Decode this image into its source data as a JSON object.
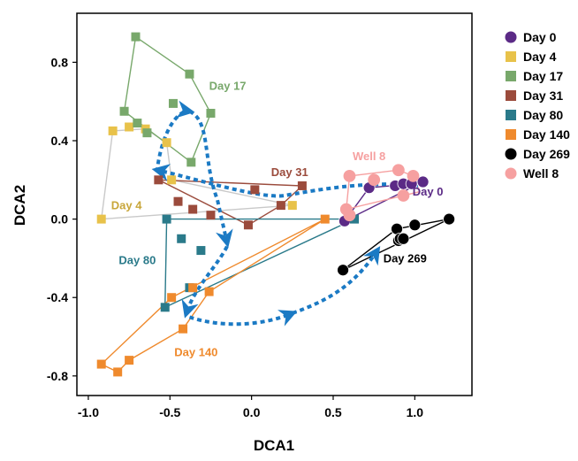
{
  "chart_data": {
    "type": "scatter",
    "title": "",
    "xlabel": "DCA1",
    "ylabel": "DCA2",
    "xlim": [
      -1.07,
      1.35
    ],
    "ylim": [
      -0.9,
      1.05
    ],
    "xticks": [
      -1.0,
      -0.5,
      0.0,
      0.5,
      1.0
    ],
    "yticks": [
      -0.8,
      -0.4,
      0.0,
      0.4,
      0.8
    ],
    "xtick_labels": [
      "-1.0",
      "-0.5",
      "0.0",
      "0.5",
      "1.0"
    ],
    "ytick_labels": [
      "-0.8",
      "-0.4",
      "0.0",
      "0.4",
      "0.8"
    ],
    "grid": false,
    "legend_position": "outside-right",
    "series": [
      {
        "name": "Day 0",
        "marker": "circle",
        "color": "#5b2a86",
        "points": [
          [
            0.57,
            -0.01
          ],
          [
            0.72,
            0.16
          ],
          [
            0.88,
            0.17
          ],
          [
            0.93,
            0.18
          ],
          [
            0.98,
            0.18
          ],
          [
            1.05,
            0.19
          ]
        ],
        "hull": [
          [
            0.57,
            -0.01
          ],
          [
            1.05,
            0.19
          ],
          [
            0.99,
            0.18
          ],
          [
            0.72,
            0.16
          ],
          [
            0.57,
            -0.01
          ]
        ],
        "label": "Day 0"
      },
      {
        "name": "Day 4",
        "marker": "square",
        "color": "#e8c24a",
        "points": [
          [
            -0.92,
            0.0
          ],
          [
            -0.85,
            0.45
          ],
          [
            -0.75,
            0.47
          ],
          [
            -0.65,
            0.46
          ],
          [
            -0.52,
            0.39
          ],
          [
            -0.49,
            0.2
          ],
          [
            0.25,
            0.07
          ]
        ],
        "hull": [
          [
            -0.92,
            0.0
          ],
          [
            -0.85,
            0.45
          ],
          [
            -0.65,
            0.46
          ],
          [
            -0.52,
            0.39
          ],
          [
            -0.49,
            0.2
          ],
          [
            0.25,
            0.07
          ],
          [
            -0.92,
            0.0
          ]
        ],
        "label": "Day 4"
      },
      {
        "name": "Day 17",
        "marker": "square",
        "color": "#78a86b",
        "points": [
          [
            -0.71,
            0.93
          ],
          [
            -0.38,
            0.74
          ],
          [
            -0.25,
            0.54
          ],
          [
            -0.78,
            0.55
          ],
          [
            -0.7,
            0.49
          ],
          [
            -0.64,
            0.44
          ],
          [
            -0.48,
            0.59
          ],
          [
            -0.37,
            0.29
          ]
        ],
        "hull": [
          [
            -0.71,
            0.93
          ],
          [
            -0.38,
            0.74
          ],
          [
            -0.25,
            0.54
          ],
          [
            -0.37,
            0.29
          ],
          [
            -0.78,
            0.55
          ],
          [
            -0.71,
            0.93
          ]
        ],
        "label": "Day 17"
      },
      {
        "name": "Day 31",
        "marker": "square",
        "color": "#9b4b3c",
        "points": [
          [
            -0.57,
            0.2
          ],
          [
            -0.45,
            0.09
          ],
          [
            -0.36,
            0.05
          ],
          [
            -0.25,
            0.02
          ],
          [
            0.02,
            0.15
          ],
          [
            0.18,
            0.07
          ],
          [
            0.31,
            0.17
          ],
          [
            -0.02,
            -0.03
          ]
        ],
        "hull": [
          [
            -0.57,
            0.2
          ],
          [
            0.31,
            0.17
          ],
          [
            0.18,
            0.07
          ],
          [
            -0.02,
            -0.03
          ],
          [
            -0.57,
            0.2
          ]
        ],
        "label": "Day 31"
      },
      {
        "name": "Day 80",
        "marker": "square",
        "color": "#2a7a8a",
        "points": [
          [
            -0.52,
            0.0
          ],
          [
            -0.43,
            -0.1
          ],
          [
            -0.38,
            -0.35
          ],
          [
            -0.53,
            -0.45
          ],
          [
            -0.31,
            -0.16
          ],
          [
            0.63,
            0.0
          ]
        ],
        "hull": [
          [
            -0.52,
            0.0
          ],
          [
            0.63,
            0.0
          ],
          [
            -0.53,
            -0.45
          ],
          [
            -0.52,
            0.0
          ]
        ],
        "label": "Day 80"
      },
      {
        "name": "Day 140",
        "marker": "square",
        "color": "#ef8a2d",
        "points": [
          [
            -0.92,
            -0.74
          ],
          [
            -0.82,
            -0.78
          ],
          [
            -0.75,
            -0.72
          ],
          [
            -0.49,
            -0.4
          ],
          [
            -0.42,
            -0.56
          ],
          [
            -0.36,
            -0.35
          ],
          [
            -0.26,
            -0.37
          ],
          [
            0.45,
            0.0
          ]
        ],
        "hull": [
          [
            -0.92,
            -0.74
          ],
          [
            -0.82,
            -0.78
          ],
          [
            -0.75,
            -0.72
          ],
          [
            -0.42,
            -0.56
          ],
          [
            -0.26,
            -0.37
          ],
          [
            0.45,
            0.0
          ],
          [
            -0.49,
            -0.4
          ],
          [
            -0.92,
            -0.74
          ]
        ],
        "label": "Day 140"
      },
      {
        "name": "Day 269",
        "marker": "circle",
        "color": "#000000",
        "points": [
          [
            0.56,
            -0.26
          ],
          [
            0.89,
            -0.05
          ],
          [
            0.9,
            -0.11
          ],
          [
            0.91,
            -0.1
          ],
          [
            0.93,
            -0.1
          ],
          [
            1.0,
            -0.03
          ],
          [
            1.21,
            0.0
          ]
        ],
        "hull": [
          [
            0.56,
            -0.26
          ],
          [
            1.21,
            0.0
          ],
          [
            0.89,
            -0.05
          ],
          [
            0.56,
            -0.26
          ]
        ],
        "label": "Day 269"
      },
      {
        "name": "Well 8",
        "marker": "circle",
        "color": "#f6a0a0",
        "points": [
          [
            0.6,
            0.22
          ],
          [
            0.75,
            0.2
          ],
          [
            0.9,
            0.25
          ],
          [
            0.99,
            0.22
          ],
          [
            0.93,
            0.12
          ],
          [
            0.58,
            0.05
          ],
          [
            0.6,
            0.02
          ]
        ],
        "hull": [
          [
            0.6,
            0.22
          ],
          [
            0.9,
            0.25
          ],
          [
            0.99,
            0.22
          ],
          [
            1.03,
            0.14
          ],
          [
            0.58,
            0.05
          ],
          [
            0.6,
            0.22
          ]
        ],
        "label": "Well 8"
      }
    ]
  },
  "legend": [
    {
      "label": "Day 0",
      "color": "#5b2a86",
      "marker": "circle"
    },
    {
      "label": "Day 4",
      "color": "#e8c24a",
      "marker": "square"
    },
    {
      "label": "Day 17",
      "color": "#78a86b",
      "marker": "square"
    },
    {
      "label": "Day 31",
      "color": "#9b4b3c",
      "marker": "square"
    },
    {
      "label": "Day 80",
      "color": "#2a7a8a",
      "marker": "square"
    },
    {
      "label": "Day 140",
      "color": "#ef8a2d",
      "marker": "square"
    },
    {
      "label": "Day 269",
      "color": "#000000",
      "marker": "circle"
    },
    {
      "label": "Well 8",
      "color": "#f6a0a0",
      "marker": "circle"
    }
  ],
  "trajectory": {
    "color": "#1b7ac4",
    "style": "dotted-arrows"
  }
}
